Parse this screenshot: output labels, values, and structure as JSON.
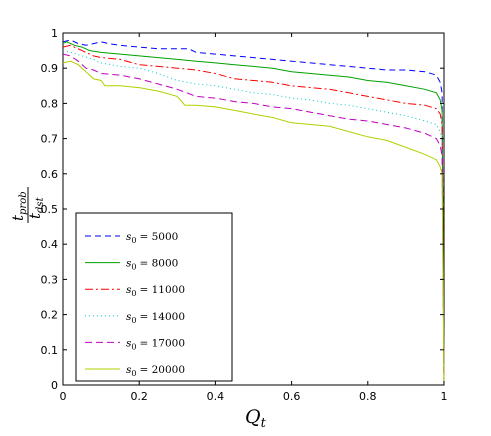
{
  "chart_data": {
    "type": "line",
    "xlabel": "Q",
    "xlabel_sub": "t",
    "ylabel_num": "prob",
    "ylabel_den": "dst",
    "ylabel_var": "t",
    "xlim": [
      0,
      1
    ],
    "ylim": [
      0,
      1
    ],
    "xticks": [
      "0",
      "0.2",
      "0.4",
      "0.6",
      "0.8",
      "1"
    ],
    "yticks": [
      "0",
      "0.1",
      "0.2",
      "0.3",
      "0.4",
      "0.5",
      "0.6",
      "0.7",
      "0.8",
      "0.9",
      "1"
    ],
    "grid": false,
    "legend_position": "bottom-left",
    "series": [
      {
        "name": "s0 = 5000",
        "legend_var": "s",
        "legend_sub": "0",
        "legend_val": "= 5000",
        "color": "#0000ff",
        "dash": "6,4",
        "x": [
          0,
          0.02,
          0.04,
          0.06,
          0.08,
          0.1,
          0.12,
          0.15,
          0.2,
          0.25,
          0.3,
          0.33,
          0.35,
          0.4,
          0.45,
          0.5,
          0.55,
          0.6,
          0.65,
          0.7,
          0.75,
          0.8,
          0.85,
          0.9,
          0.95,
          0.98,
          0.99,
          0.995,
          1.0
        ],
        "y": [
          0.975,
          0.98,
          0.97,
          0.965,
          0.97,
          0.975,
          0.97,
          0.965,
          0.96,
          0.955,
          0.955,
          0.955,
          0.945,
          0.94,
          0.935,
          0.93,
          0.925,
          0.92,
          0.915,
          0.91,
          0.905,
          0.9,
          0.895,
          0.895,
          0.89,
          0.88,
          0.86,
          0.83,
          0.0
        ]
      },
      {
        "name": "s0 = 8000",
        "legend_var": "s",
        "legend_sub": "0",
        "legend_val": "= 8000",
        "color": "#00a000",
        "dash": "",
        "x": [
          0,
          0.01,
          0.02,
          0.03,
          0.05,
          0.07,
          0.1,
          0.15,
          0.2,
          0.25,
          0.3,
          0.35,
          0.4,
          0.45,
          0.5,
          0.55,
          0.6,
          0.65,
          0.7,
          0.75,
          0.8,
          0.85,
          0.9,
          0.95,
          0.98,
          0.99,
          0.995,
          1.0
        ],
        "y": [
          0.97,
          0.975,
          0.97,
          0.965,
          0.96,
          0.95,
          0.945,
          0.94,
          0.935,
          0.93,
          0.925,
          0.92,
          0.915,
          0.91,
          0.905,
          0.9,
          0.89,
          0.885,
          0.88,
          0.875,
          0.865,
          0.86,
          0.85,
          0.84,
          0.83,
          0.81,
          0.78,
          0.0
        ]
      },
      {
        "name": "s0 = 11000",
        "legend_var": "s",
        "legend_sub": "0",
        "legend_val": "= 11000",
        "color": "#ff0000",
        "dash": "8,3,2,3",
        "x": [
          0,
          0.02,
          0.05,
          0.08,
          0.1,
          0.15,
          0.2,
          0.25,
          0.3,
          0.35,
          0.4,
          0.45,
          0.5,
          0.55,
          0.6,
          0.65,
          0.7,
          0.75,
          0.8,
          0.85,
          0.9,
          0.95,
          0.98,
          0.99,
          0.995,
          1.0
        ],
        "y": [
          0.96,
          0.965,
          0.95,
          0.935,
          0.93,
          0.925,
          0.91,
          0.905,
          0.9,
          0.895,
          0.885,
          0.87,
          0.865,
          0.86,
          0.85,
          0.845,
          0.84,
          0.83,
          0.82,
          0.81,
          0.8,
          0.795,
          0.785,
          0.77,
          0.74,
          0.0
        ]
      },
      {
        "name": "s0 = 14000",
        "legend_var": "s",
        "legend_sub": "0",
        "legend_val": "= 14000",
        "color": "#00c8d0",
        "dash": "1,3",
        "x": [
          0,
          0.02,
          0.05,
          0.08,
          0.1,
          0.15,
          0.2,
          0.25,
          0.3,
          0.35,
          0.4,
          0.45,
          0.5,
          0.55,
          0.6,
          0.65,
          0.7,
          0.75,
          0.8,
          0.85,
          0.9,
          0.95,
          0.98,
          0.99,
          0.995,
          1.0
        ],
        "y": [
          0.95,
          0.945,
          0.935,
          0.925,
          0.915,
          0.905,
          0.9,
          0.885,
          0.865,
          0.855,
          0.85,
          0.84,
          0.83,
          0.825,
          0.815,
          0.81,
          0.8,
          0.795,
          0.785,
          0.775,
          0.765,
          0.75,
          0.74,
          0.72,
          0.7,
          0.0
        ]
      },
      {
        "name": "s0 = 17000",
        "legend_var": "s",
        "legend_sub": "0",
        "legend_val": "= 17000",
        "color": "#c000c0",
        "dash": "7,4",
        "x": [
          0,
          0.02,
          0.04,
          0.06,
          0.08,
          0.1,
          0.15,
          0.2,
          0.25,
          0.3,
          0.35,
          0.4,
          0.45,
          0.5,
          0.55,
          0.6,
          0.65,
          0.7,
          0.75,
          0.8,
          0.85,
          0.9,
          0.95,
          0.98,
          0.99,
          0.995,
          1.0
        ],
        "y": [
          0.94,
          0.935,
          0.92,
          0.9,
          0.895,
          0.885,
          0.88,
          0.87,
          0.855,
          0.84,
          0.82,
          0.815,
          0.805,
          0.8,
          0.79,
          0.785,
          0.775,
          0.765,
          0.755,
          0.75,
          0.74,
          0.73,
          0.715,
          0.7,
          0.68,
          0.65,
          0.0
        ]
      },
      {
        "name": "s0 = 20000",
        "legend_var": "s",
        "legend_sub": "0",
        "legend_val": "= 20000",
        "color": "#b0d000",
        "dash": "",
        "x": [
          0,
          0.02,
          0.04,
          0.06,
          0.08,
          0.1,
          0.11,
          0.15,
          0.2,
          0.25,
          0.3,
          0.32,
          0.35,
          0.4,
          0.45,
          0.5,
          0.55,
          0.6,
          0.65,
          0.7,
          0.75,
          0.8,
          0.85,
          0.9,
          0.95,
          0.98,
          0.99,
          0.995,
          1.0
        ],
        "y": [
          0.915,
          0.92,
          0.91,
          0.89,
          0.87,
          0.865,
          0.85,
          0.85,
          0.845,
          0.835,
          0.82,
          0.795,
          0.795,
          0.79,
          0.78,
          0.77,
          0.76,
          0.745,
          0.74,
          0.735,
          0.72,
          0.705,
          0.695,
          0.675,
          0.655,
          0.64,
          0.62,
          0.6,
          0.0
        ]
      }
    ]
  }
}
